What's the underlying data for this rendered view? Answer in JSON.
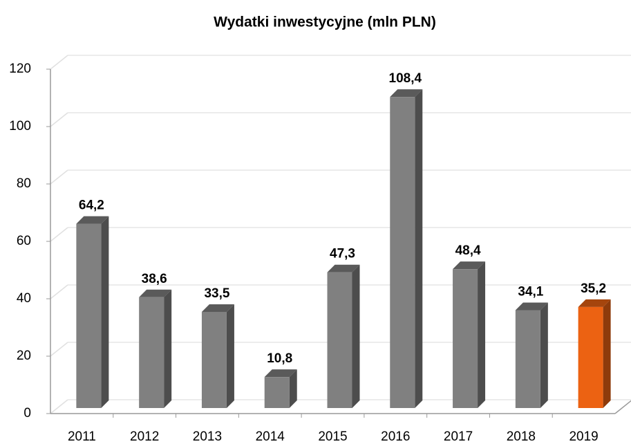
{
  "chart_data": {
    "type": "bar3d",
    "title": "Wydatki inwestycyjne (mln PLN)",
    "categories": [
      "2011",
      "2012",
      "2013",
      "2014",
      "2015",
      "2016",
      "2017",
      "2018",
      "2019"
    ],
    "values": [
      64.2,
      38.6,
      33.5,
      10.8,
      47.3,
      108.4,
      48.4,
      34.1,
      35.2
    ],
    "value_labels": [
      "64,2",
      "38,6",
      "33,5",
      "10,8",
      "47,3",
      "108,4",
      "48,4",
      "34,1",
      "35,2"
    ],
    "colors": [
      "#808080",
      "#808080",
      "#808080",
      "#808080",
      "#808080",
      "#808080",
      "#808080",
      "#808080",
      "#ec6212"
    ],
    "ylim": [
      0,
      120
    ],
    "yticks": [
      0,
      20,
      40,
      60,
      80,
      100,
      120
    ],
    "grid": true
  }
}
